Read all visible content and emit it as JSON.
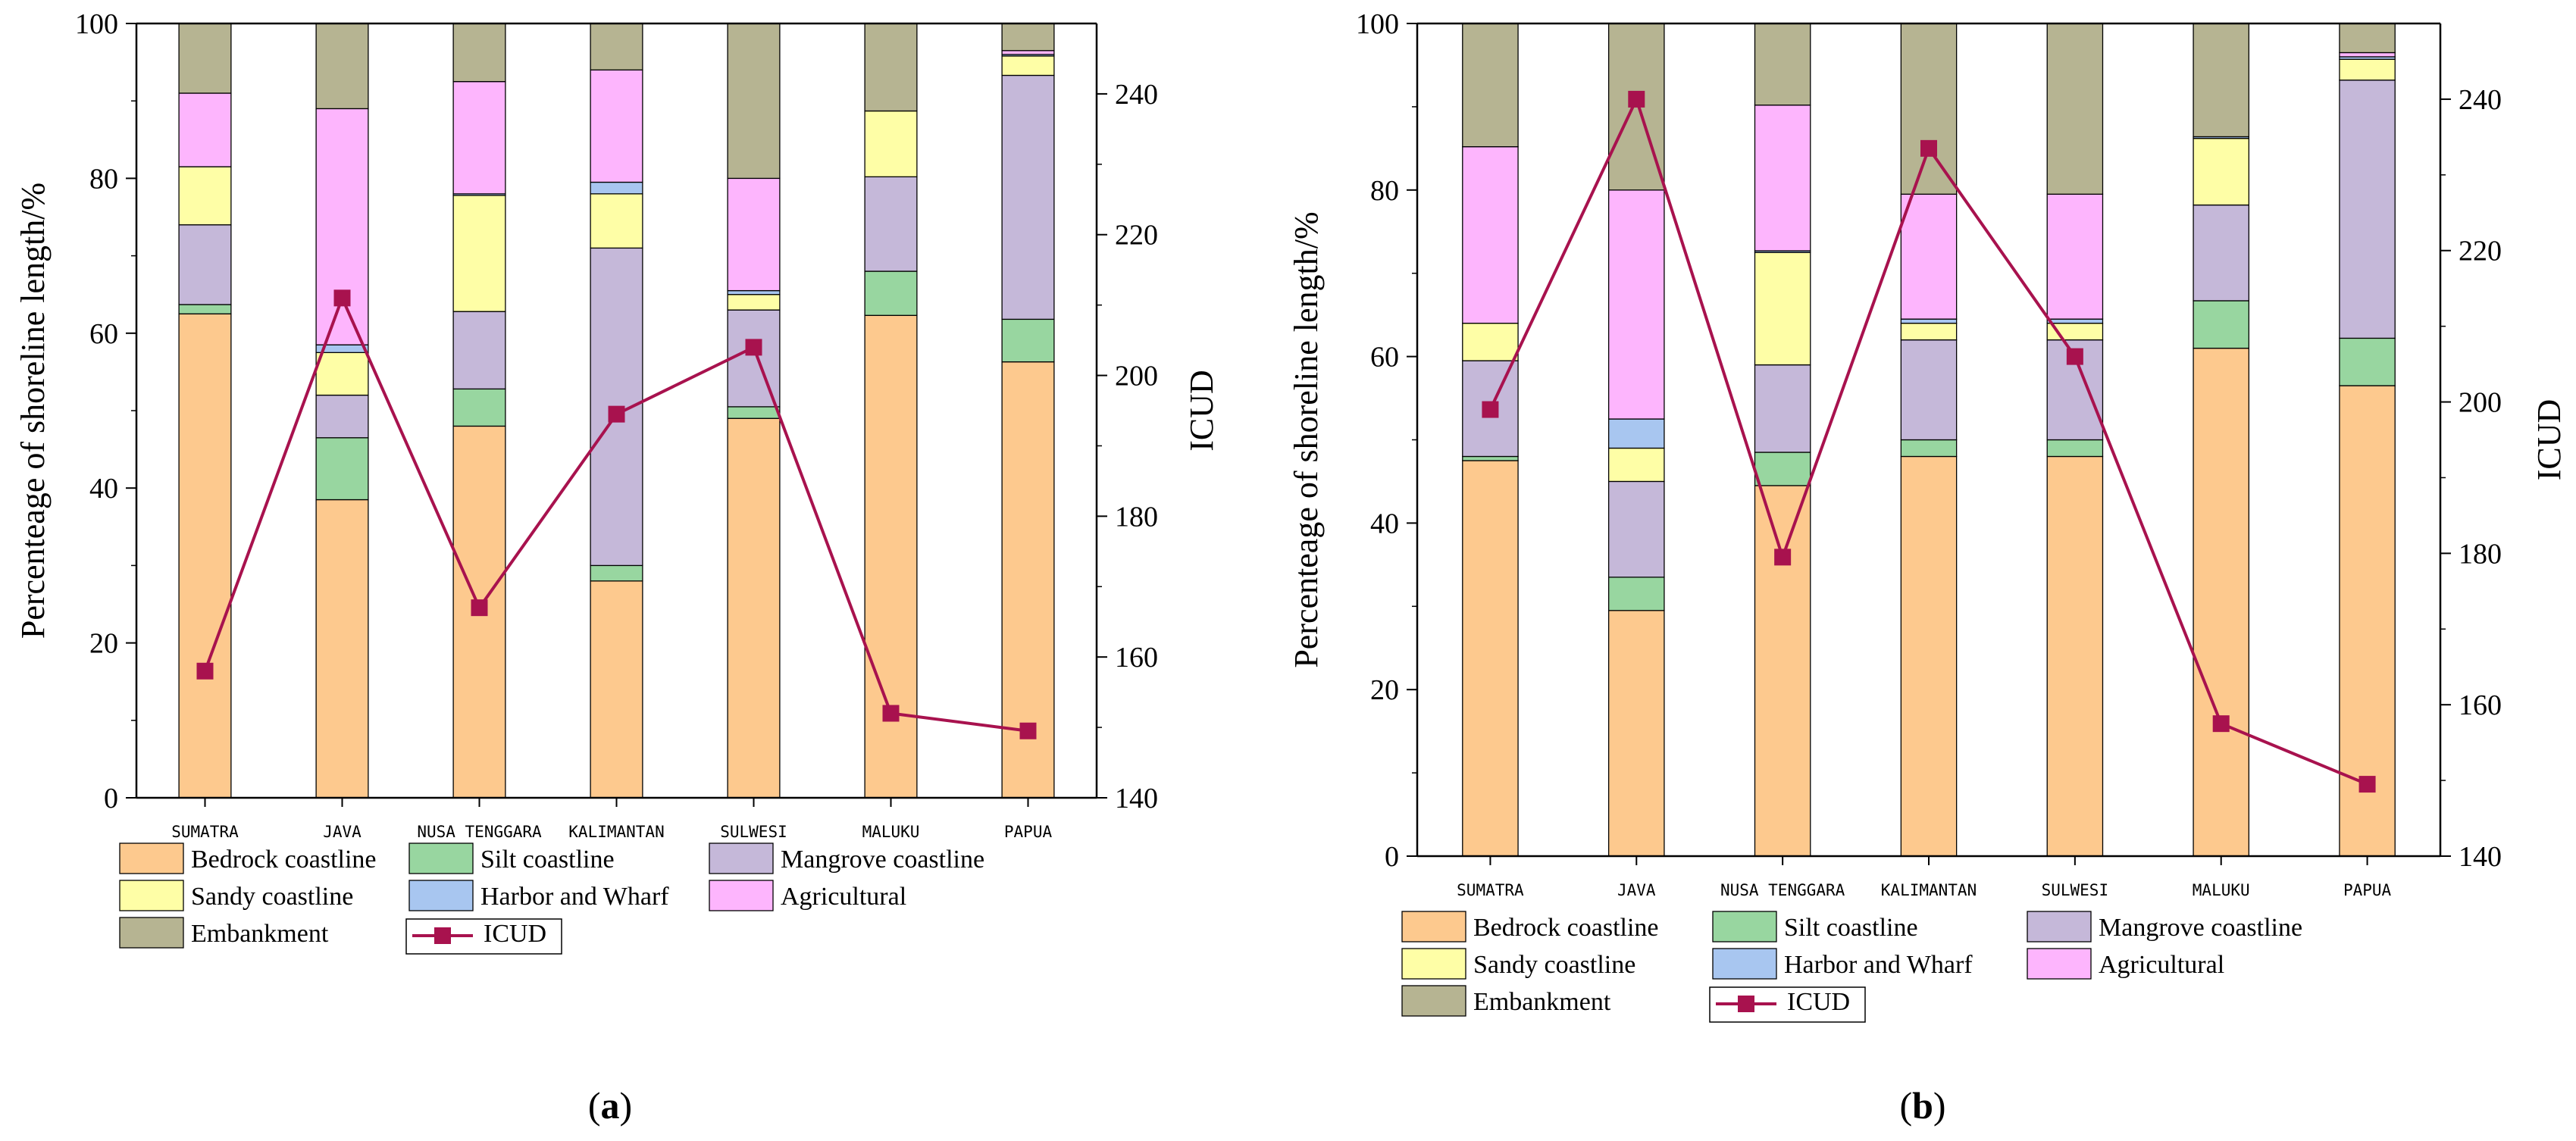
{
  "colors": {
    "Bedrock coastline": "#FDC98E",
    "Silt coastline": "#98D6A0",
    "Mangrove coastline": "#C5B8D9",
    "Sandy coastline": "#FEFEA6",
    "Harbor and Wharf": "#A8C6F0",
    "Agricultural": "#FDB5FD",
    "Embankment": "#B6B492",
    "ICUD": "#A8124E"
  },
  "legend": {
    "items": [
      "Bedrock coastline",
      "Silt coastline",
      "Mangrove coastline",
      "Sandy coastline",
      "Harbor and Wharf",
      "Agricultural",
      "Embankment"
    ],
    "line_label": "ICUD"
  },
  "chart_data": [
    {
      "type": "bar",
      "stacked": true,
      "panel": "a",
      "panel_label": "(a)",
      "categories": [
        "SUMATRA",
        "JAVA",
        "NUSA TENGGARA",
        "KALIMANTAN",
        "SULWESI",
        "MALUKU",
        "PAPUA"
      ],
      "series": [
        {
          "name": "Bedrock coastline",
          "values": [
            62.5,
            38.5,
            48,
            28,
            49,
            62.3,
            56.3
          ]
        },
        {
          "name": "Silt coastline",
          "values": [
            1.2,
            8,
            4.8,
            2,
            1.5,
            5.7,
            5.5
          ]
        },
        {
          "name": "Mangrove coastline",
          "values": [
            10.3,
            5.5,
            10,
            41,
            12.5,
            12.2,
            31.5
          ]
        },
        {
          "name": "Sandy coastline",
          "values": [
            7.5,
            5.5,
            15,
            7,
            2,
            8.5,
            2.5
          ]
        },
        {
          "name": "Harbor and Wharf",
          "values": [
            0,
            1,
            0.2,
            1.5,
            0.5,
            0,
            0.2
          ]
        },
        {
          "name": "Agricultural",
          "values": [
            9.5,
            30.5,
            14.5,
            14.5,
            14.5,
            0,
            0.5
          ]
        },
        {
          "name": "Embankment",
          "values": [
            9,
            11,
            7.5,
            6,
            20,
            11.3,
            3.5
          ]
        }
      ],
      "line": {
        "name": "ICUD",
        "values": [
          158,
          211,
          167,
          194.5,
          204,
          152,
          149.5
        ]
      },
      "ylabel": "Percenteage of shoreline length/%",
      "y2label": "ICUD",
      "ylim": [
        0,
        100
      ],
      "y2lim": [
        140,
        250
      ],
      "yticks": [
        0,
        20,
        40,
        60,
        80,
        100
      ],
      "y2ticks": [
        140,
        160,
        180,
        200,
        220,
        240
      ]
    },
    {
      "type": "bar",
      "stacked": true,
      "panel": "b",
      "panel_label": "(b)",
      "categories": [
        "SUMATRA",
        "JAVA",
        "NUSA TENGGARA",
        "KALIMANTAN",
        "SULWESI",
        "MALUKU",
        "PAPUA"
      ],
      "series": [
        {
          "name": "Bedrock coastline",
          "values": [
            47.5,
            29.5,
            44.5,
            48,
            48,
            61,
            56.5
          ]
        },
        {
          "name": "Silt coastline",
          "values": [
            0.5,
            4,
            4,
            2,
            2,
            5.7,
            5.7
          ]
        },
        {
          "name": "Mangrove coastline",
          "values": [
            11.5,
            11.5,
            10.5,
            12,
            12,
            11.5,
            31
          ]
        },
        {
          "name": "Sandy coastline",
          "values": [
            4.5,
            4,
            13.5,
            2,
            2,
            8,
            2.5
          ]
        },
        {
          "name": "Harbor and Wharf",
          "values": [
            0,
            3.5,
            0.2,
            0.5,
            0.5,
            0.2,
            0.3
          ]
        },
        {
          "name": "Agricultural",
          "values": [
            21.2,
            27.5,
            17.5,
            15,
            15,
            0,
            0.5
          ]
        },
        {
          "name": "Embankment",
          "values": [
            14.8,
            20,
            9.8,
            20.5,
            20.5,
            13.6,
            3.5
          ]
        }
      ],
      "line": {
        "name": "ICUD",
        "values": [
          199,
          240,
          179.5,
          233.5,
          206,
          157.5,
          149.5
        ]
      },
      "ylabel": "Percenteage of shoreline length/%",
      "y2label": "ICUD",
      "ylim": [
        0,
        100
      ],
      "y2lim": [
        140,
        250
      ],
      "yticks": [
        0,
        20,
        40,
        60,
        80,
        100
      ],
      "y2ticks": [
        140,
        160,
        180,
        200,
        220,
        240
      ]
    }
  ]
}
